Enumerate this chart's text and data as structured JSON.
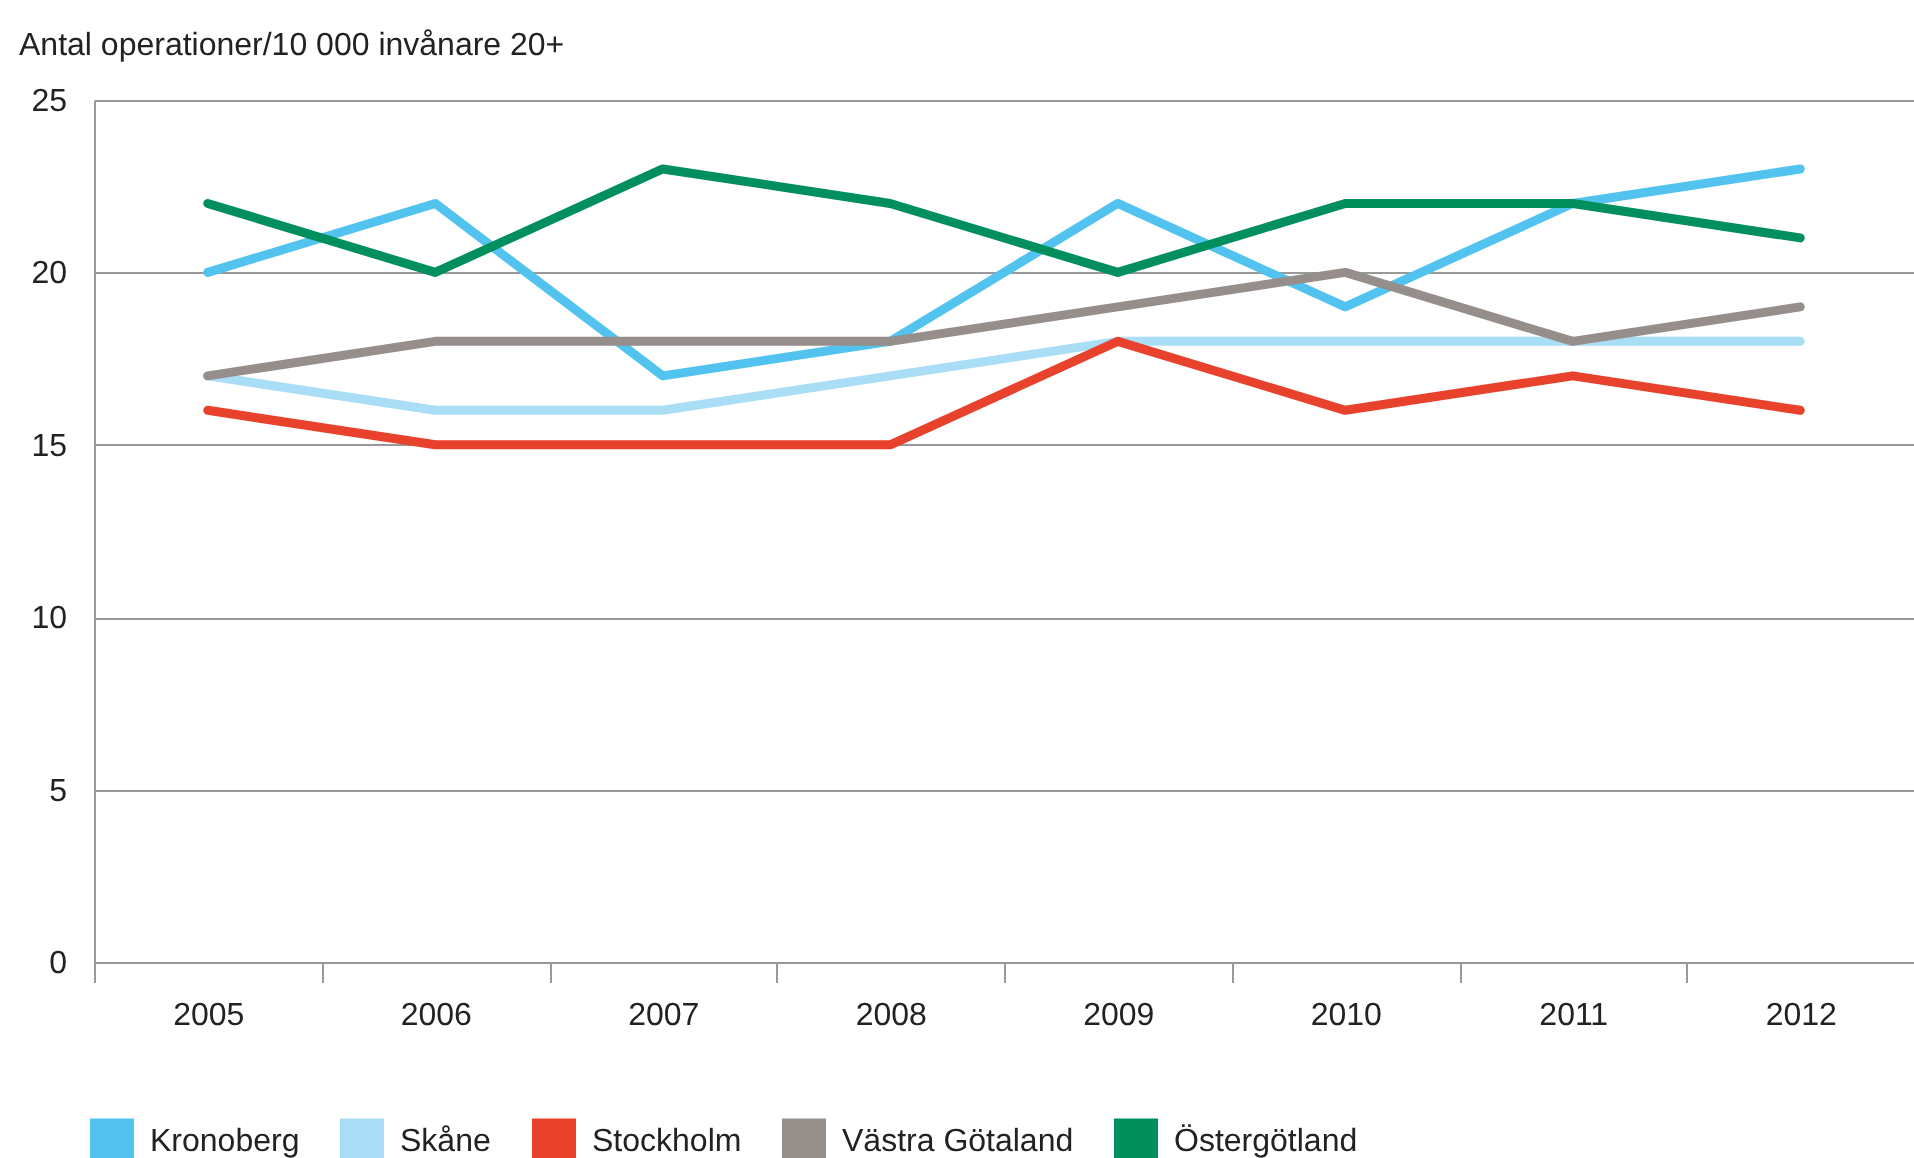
{
  "chart_data": {
    "type": "line",
    "ylabel": "Antal operationer/10 000 invånare 20+",
    "categories": [
      "2005",
      "2006",
      "2007",
      "2008",
      "2009",
      "2010",
      "2011",
      "2012"
    ],
    "series": [
      {
        "name": "Kronoberg",
        "color": "#52c3ef",
        "values": [
          20,
          22,
          17,
          18,
          22,
          19,
          22,
          23
        ]
      },
      {
        "name": "Skåne",
        "color": "#a9def6",
        "values": [
          17,
          16,
          16,
          17,
          18,
          18,
          18,
          18
        ]
      },
      {
        "name": "Stockholm",
        "color": "#e8412c",
        "values": [
          16,
          15,
          15,
          15,
          18,
          16,
          17,
          16
        ]
      },
      {
        "name": "Västra Götaland",
        "color": "#958e8a",
        "values": [
          17,
          18,
          18,
          18,
          19,
          20,
          18,
          19
        ]
      },
      {
        "name": "Östergötland",
        "color": "#008f5d",
        "values": [
          22,
          20,
          23,
          22,
          20,
          22,
          22,
          21
        ]
      }
    ],
    "ylim": [
      0,
      25
    ],
    "yticks": [
      0,
      5,
      10,
      15,
      20,
      25
    ],
    "grid": "y",
    "legend": "bottom",
    "line_style": "solid"
  }
}
